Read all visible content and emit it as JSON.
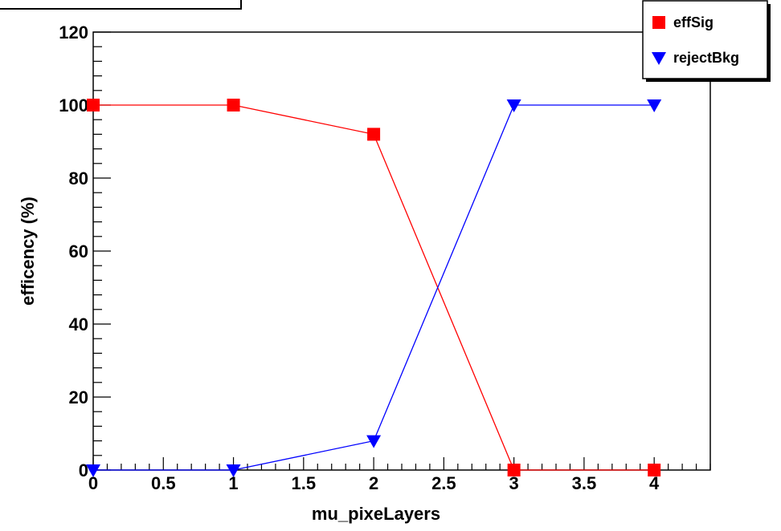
{
  "chart_data": {
    "type": "line",
    "title": "",
    "xlabel": "mu_pixeLayers",
    "ylabel": "efficency (%)",
    "xlim": [
      0,
      4.4
    ],
    "ylim": [
      0,
      120
    ],
    "x_ticks": [
      0,
      0.5,
      1,
      1.5,
      2,
      2.5,
      3,
      3.5,
      4
    ],
    "x_tick_labels": [
      "0",
      "0.5",
      "1",
      "1.5",
      "2",
      "2.5",
      "3",
      "3.5",
      "4"
    ],
    "y_ticks": [
      0,
      20,
      40,
      60,
      80,
      100,
      120
    ],
    "y_tick_labels": [
      "0",
      "20",
      "40",
      "60",
      "80",
      "100",
      "120"
    ],
    "grid": false,
    "legend_position": "top-right",
    "series": [
      {
        "name": "effSig",
        "color": "#ff0000",
        "marker": "square",
        "x": [
          0,
          1,
          2,
          3,
          4
        ],
        "y": [
          100,
          100,
          92,
          0,
          0
        ]
      },
      {
        "name": "rejectBkg",
        "color": "#0000ff",
        "marker": "triangle-down",
        "x": [
          0,
          1,
          2,
          3,
          4
        ],
        "y": [
          0,
          0,
          8,
          100,
          100
        ]
      }
    ]
  }
}
